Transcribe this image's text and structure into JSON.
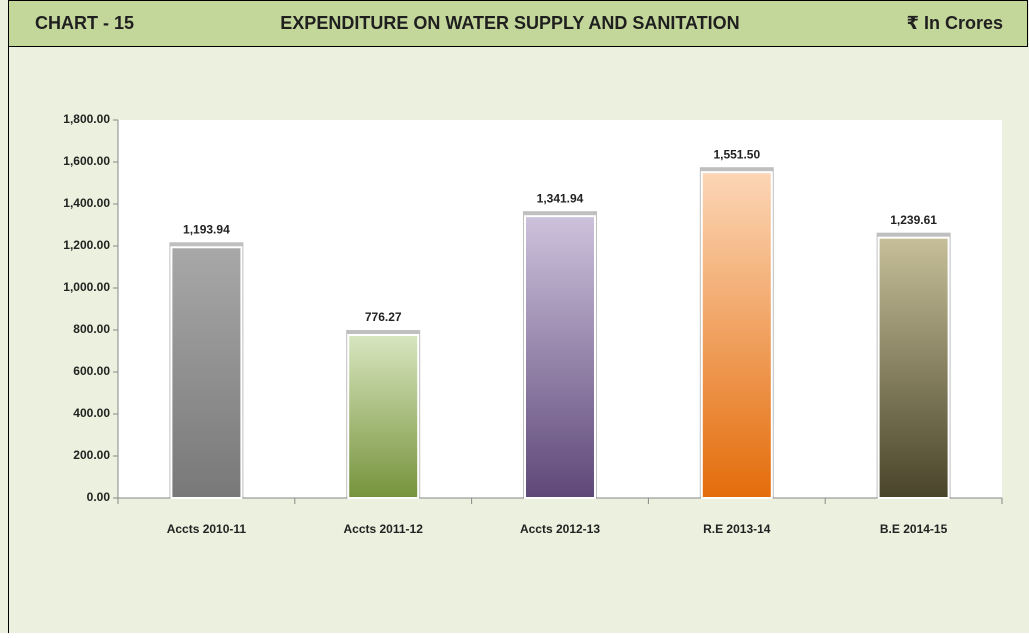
{
  "chart_data": {
    "type": "bar",
    "label": "CHART - 15",
    "title": "EXPENDITURE ON WATER SUPPLY AND SANITATION",
    "unit": "₹ In Crores",
    "categories": [
      "Accts 2010-11",
      "Accts 2011-12",
      "Accts 2012-13",
      "R.E 2013-14",
      "B.E 2014-15"
    ],
    "values": [
      1193.94,
      776.27,
      1341.94,
      1551.5,
      1239.61
    ],
    "value_labels": [
      "1,193.94",
      "776.27",
      "1,341.94",
      "1,551.50",
      "1,239.61"
    ],
    "colors": [
      [
        "#a8a8a8",
        "#787878"
      ],
      [
        "#d8e6bf",
        "#76933c"
      ],
      [
        "#cdc2dc",
        "#5f4879"
      ],
      [
        "#fcd6b6",
        "#e46c0a"
      ],
      [
        "#c6bf99",
        "#49442a"
      ]
    ],
    "ylim": [
      0,
      1800
    ],
    "yticks": [
      {
        "value": 0,
        "label": "0.00"
      },
      {
        "value": 200,
        "label": "200.00"
      },
      {
        "value": 400,
        "label": "400.00"
      },
      {
        "value": 600,
        "label": "600.00"
      },
      {
        "value": 800,
        "label": "800.00"
      },
      {
        "value": 1000,
        "label": "1,000.00"
      },
      {
        "value": 1200,
        "label": "1,200.00"
      },
      {
        "value": 1400,
        "label": "1,400.00"
      },
      {
        "value": 1600,
        "label": "1,600.00"
      },
      {
        "value": 1800,
        "label": "1,800.00"
      }
    ],
    "grid": false
  }
}
